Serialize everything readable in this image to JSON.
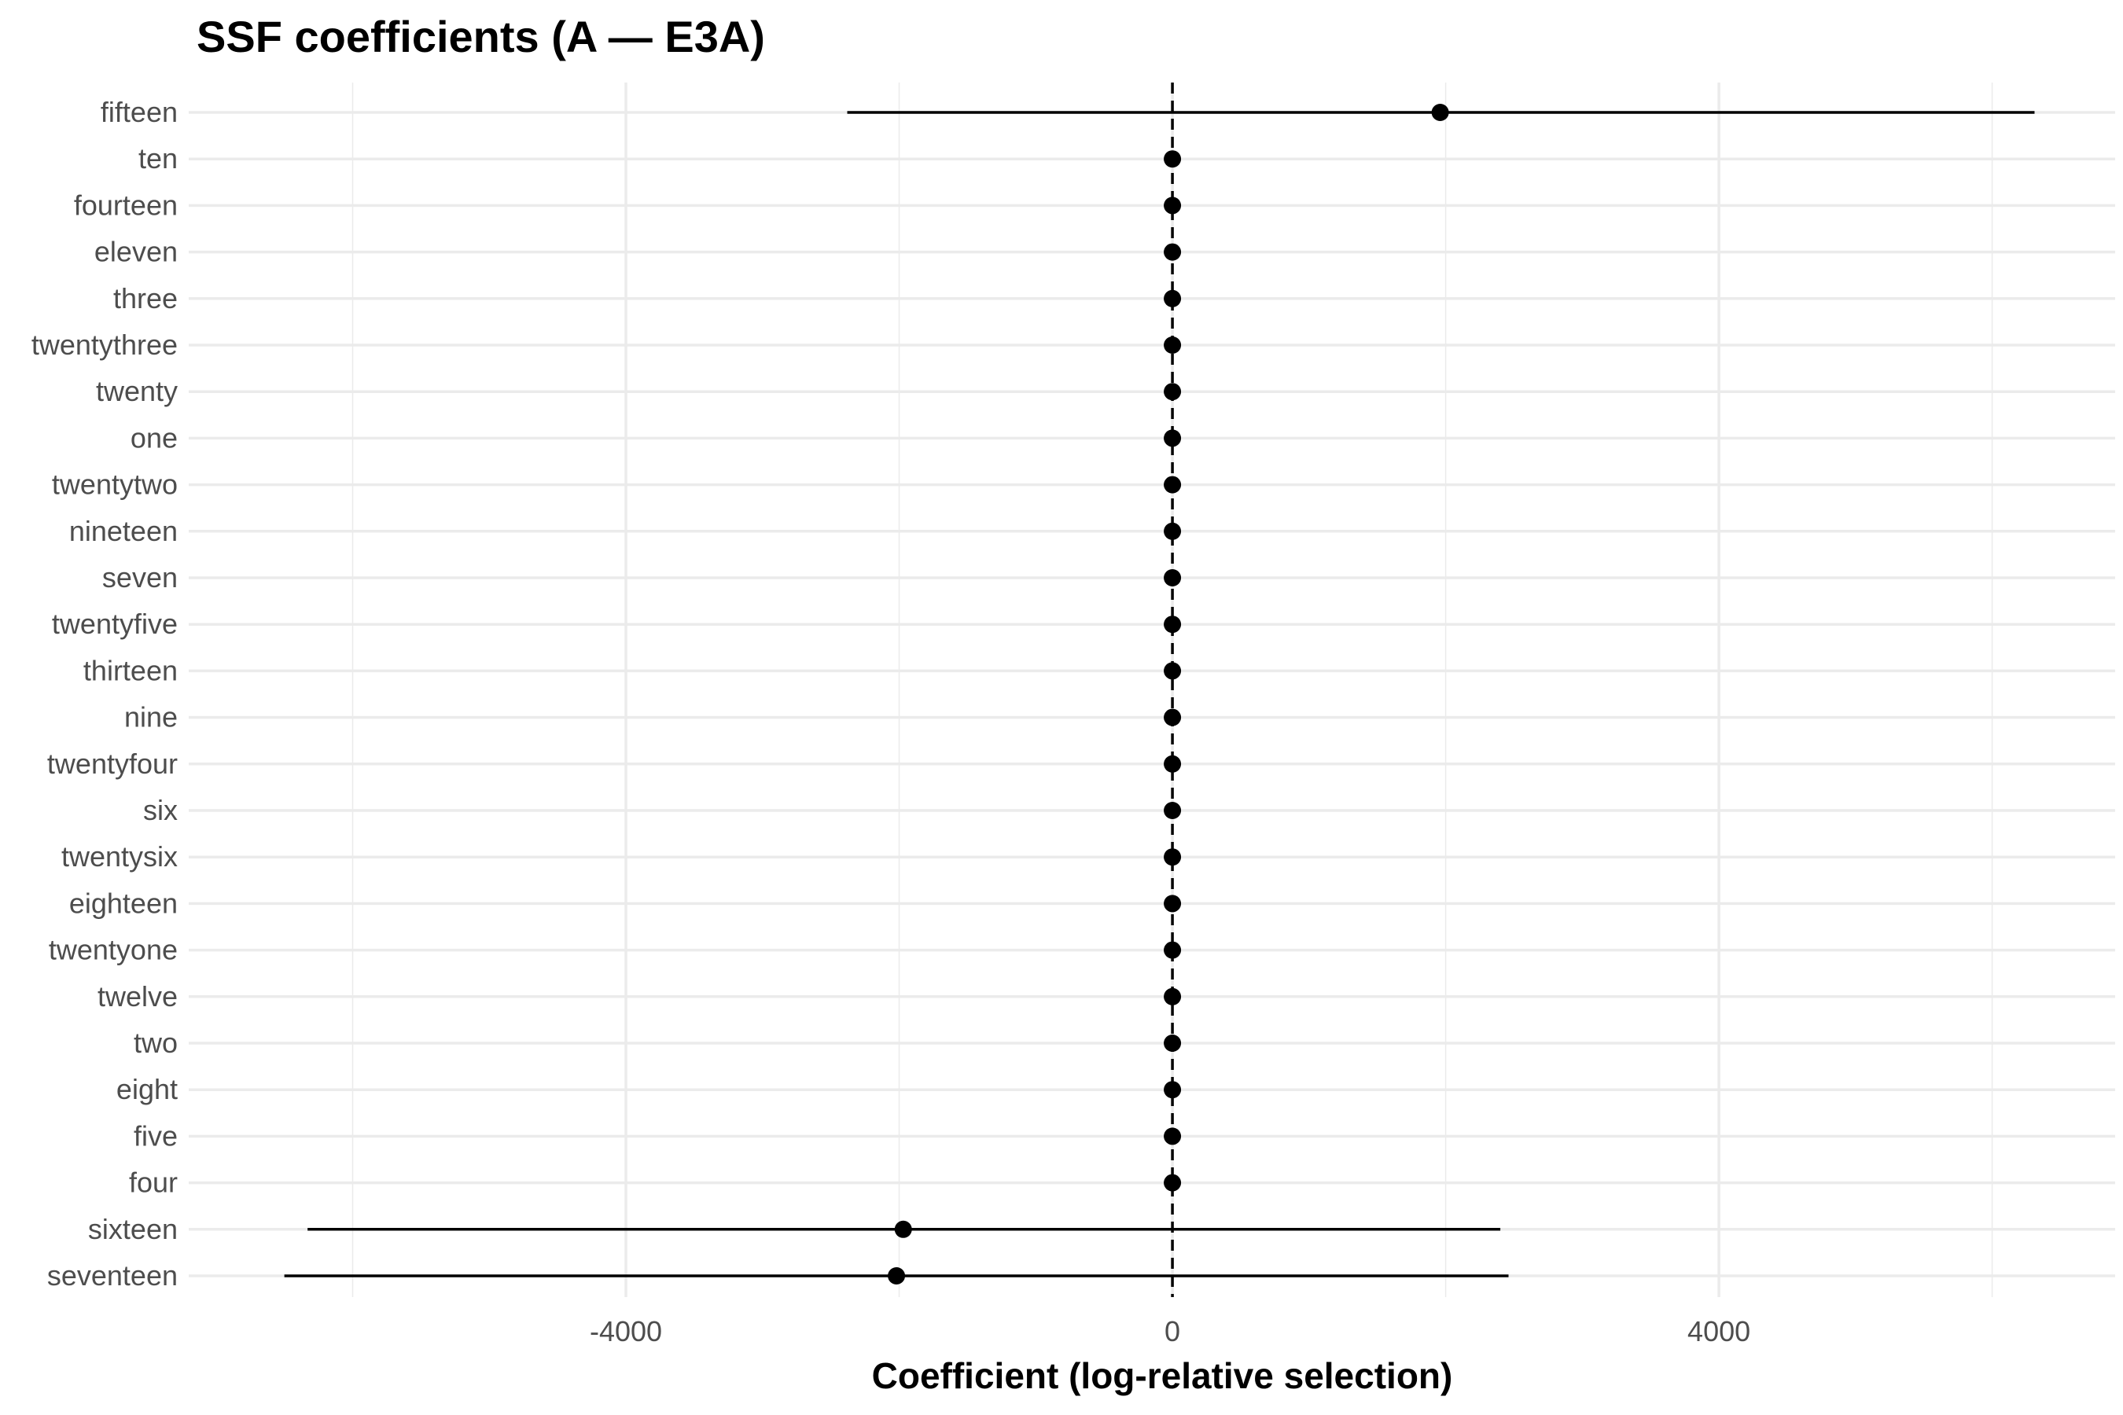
{
  "chart_data": {
    "type": "scatter",
    "title": "SSF coefficients (A — E3A)",
    "xlabel": "Coefficient (log-relative selection)",
    "ylabel": "",
    "xlim": [
      -7200,
      6900
    ],
    "xticks": [
      -4000,
      0,
      4000
    ],
    "xtick_labels": [
      "-4000",
      "0",
      "4000"
    ],
    "reference_line": {
      "x": 0,
      "style": "dashed"
    },
    "grid": true,
    "categories": [
      "fifteen",
      "ten",
      "fourteen",
      "eleven",
      "three",
      "twentythree",
      "twenty",
      "one",
      "twentytwo",
      "nineteen",
      "seven",
      "twentyfive",
      "thirteen",
      "nine",
      "twentyfour",
      "six",
      "twentysix",
      "eighteen",
      "twentyone",
      "twelve",
      "two",
      "eight",
      "five",
      "four",
      "sixteen",
      "seventeen"
    ],
    "estimates": [
      1960,
      0,
      0,
      0,
      0,
      0,
      0,
      0,
      0,
      0,
      0,
      0,
      0,
      0,
      0,
      0,
      0,
      0,
      0,
      0,
      0,
      0,
      0,
      0,
      -1970,
      -2020
    ],
    "ci_lower": [
      -2380,
      0,
      0,
      0,
      0,
      0,
      0,
      0,
      0,
      0,
      0,
      0,
      0,
      0,
      0,
      0,
      0,
      0,
      0,
      0,
      0,
      0,
      0,
      0,
      -6330,
      -6500
    ],
    "ci_upper": [
      6310,
      0,
      0,
      0,
      0,
      0,
      0,
      0,
      0,
      0,
      0,
      0,
      0,
      0,
      0,
      0,
      0,
      0,
      0,
      0,
      0,
      0,
      0,
      0,
      2400,
      2460
    ],
    "colors": {
      "point": "#000000",
      "grid": "#ebebeb",
      "tick_text": "#4d4d4d"
    }
  }
}
